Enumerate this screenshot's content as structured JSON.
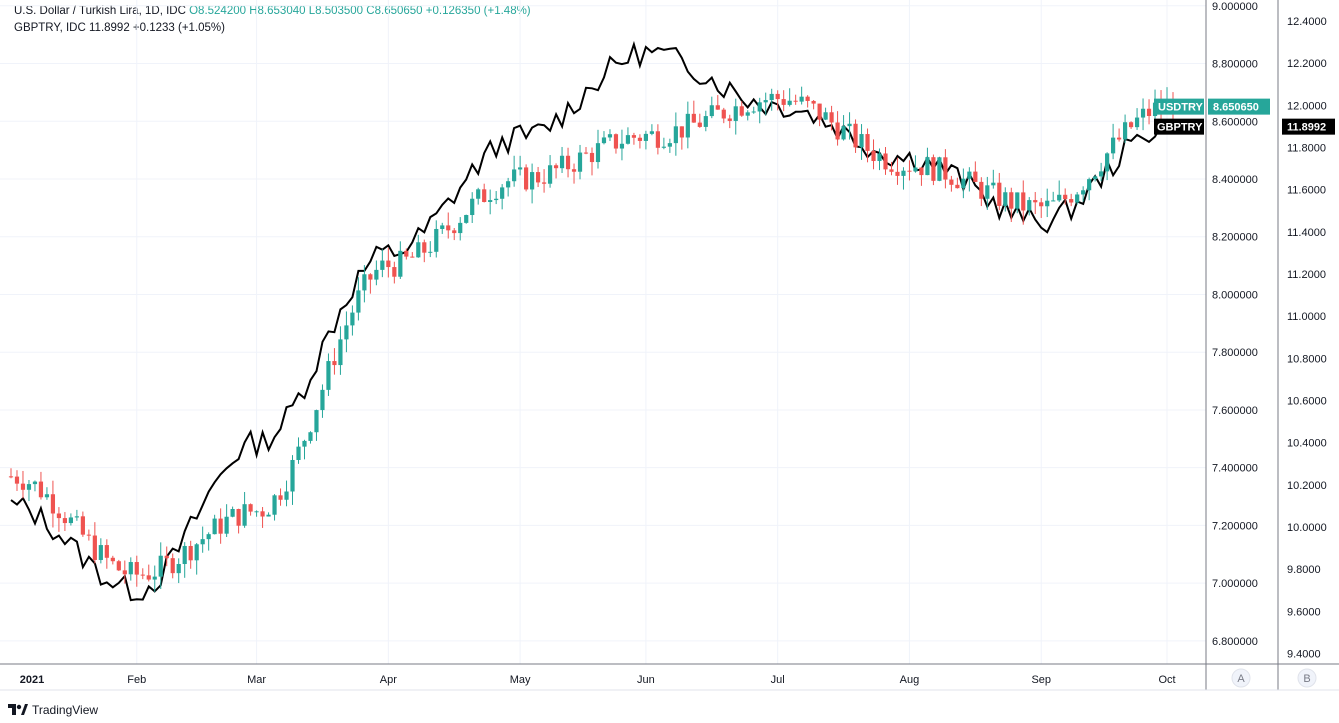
{
  "legend": {
    "main_title": "U.S. Dollar / Turkish Lira, 1D, IDC",
    "open": "O8.524200",
    "high": "H8.653040",
    "low": "L8.503500",
    "close": "C8.650650",
    "change": "+0.126350 (+1.48%)",
    "compare_title": "GBPTRY, IDC",
    "compare_last": "11.8992",
    "compare_change": "+0.1233 (+1.05%)"
  },
  "footer": {
    "brand": "TradingView",
    "logo_icon": "tradingview-logo-icon"
  },
  "scale_buttons": {
    "a": "A",
    "b": "B"
  },
  "colors": {
    "up": "#26a69a",
    "down": "#ef5350",
    "compare": "#000000",
    "grid": "#f0f3fa"
  },
  "chart_data": {
    "type": "candlestick",
    "title": "U.S. Dollar / Turkish Lira, 1D, IDC",
    "x_ticks": [
      "2021",
      "Feb",
      "Mar",
      "Apr",
      "May",
      "Jun",
      "Jul",
      "Aug",
      "Sep",
      "Oct"
    ],
    "y_right_ticks": [
      "9.000000",
      "8.800000",
      "8.600000",
      "8.400000",
      "8.200000",
      "8.000000",
      "7.800000",
      "7.600000",
      "7.400000",
      "7.200000",
      "7.000000",
      "6.800000"
    ],
    "y_left_ticks": [
      "12.4000",
      "12.2000",
      "12.0000",
      "11.8000",
      "11.6000",
      "11.4000",
      "11.2000",
      "11.0000",
      "10.8000",
      "10.6000",
      "10.4000",
      "10.2000",
      "10.0000",
      "9.8000",
      "9.6000",
      "9.4000"
    ],
    "y_right_range": [
      6.72,
      9.02
    ],
    "y_left_range": [
      9.35,
      12.5
    ],
    "usdtry_last": "8.650650",
    "gbptry_last": "11.8992",
    "series": [
      {
        "name": "USDTRY",
        "axis": "right",
        "months": [
          "2021-01",
          "2021-02",
          "2021-03",
          "2021-04",
          "2021-05",
          "2021-06",
          "2021-07",
          "2021-08",
          "2021-09"
        ],
        "monthly_close": [
          7.37,
          7.03,
          7.25,
          8.1,
          8.4,
          8.55,
          8.68,
          8.45,
          8.3
        ],
        "last_close": 8.65065
      },
      {
        "name": "GBPTRY",
        "axis": "left",
        "months": [
          "2021-01",
          "2021-02",
          "2021-03",
          "2021-04",
          "2021-05",
          "2021-06",
          "2021-07",
          "2021-08",
          "2021-09"
        ],
        "monthly_close": [
          10.1,
          9.7,
          10.4,
          11.3,
          11.85,
          12.25,
          12.0,
          11.75,
          11.45
        ],
        "last_close": 11.8992
      }
    ]
  }
}
